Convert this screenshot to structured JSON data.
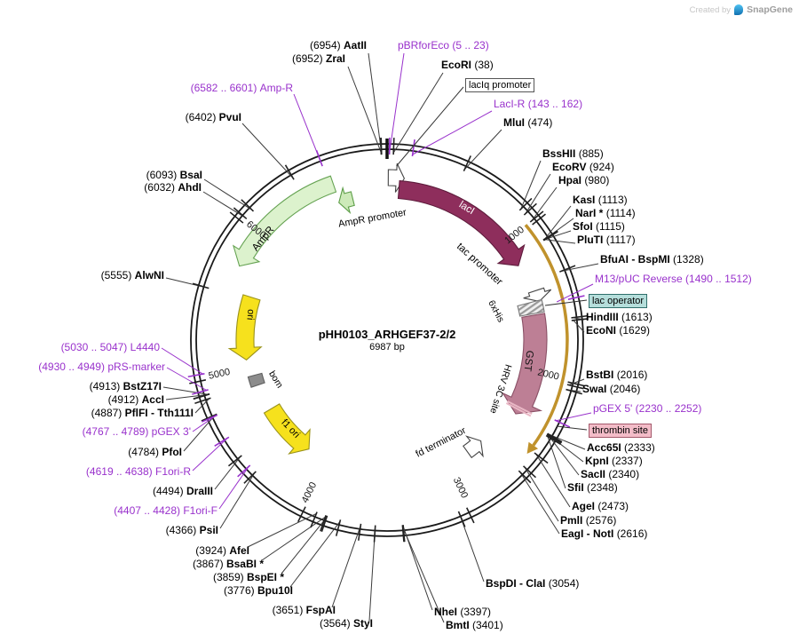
{
  "watermark": {
    "created_by": "Created by",
    "brand": "SnapGene"
  },
  "colors": {
    "backbone": "#1a1a1a",
    "primer": "#9932cc",
    "orf_gold": "#c0922c",
    "leader": "#3c3c3c"
  },
  "plasmid": {
    "name": "pHH0103_ARHGEF37-2/2",
    "size_label": "6987 bp",
    "tick_labels": [
      "1000",
      "2000",
      "3000",
      "4000",
      "5000",
      "6000"
    ],
    "features": [
      {
        "label": "AmpR promoter",
        "color": "#cdeab9"
      },
      {
        "label": "AmpR",
        "color": "#dcf2cd"
      },
      {
        "label": "lacI",
        "color": "#8e2e5c"
      },
      {
        "label": "tac promoter",
        "color": "#ffffff"
      },
      {
        "label": "6xHis",
        "color": "#d9d9d9"
      },
      {
        "label": "GST",
        "color": "#bd7f95"
      },
      {
        "label": "HRV 3C site",
        "color": "#e9b7c5"
      },
      {
        "label": "ori",
        "color": "#f6e11d"
      },
      {
        "label": "bom",
        "color": "#8c8c8c"
      },
      {
        "label": "f1 ori",
        "color": "#f6e11d"
      },
      {
        "label": "fd terminator",
        "color": "#ffffff"
      }
    ],
    "boxed_labels": [
      {
        "label": "lacIq promoter",
        "bg": "#ffffff"
      },
      {
        "label": "lac operator",
        "bg": "#b5dedb"
      },
      {
        "label": "thrombin site",
        "bg": "#f3bcc8"
      }
    ]
  },
  "sites": [
    {
      "name": "pBRforEco",
      "pos": "(5 .. 23)",
      "kind": "primer"
    },
    {
      "name": "AatII",
      "pos": "(6954)",
      "kind": "enzyme"
    },
    {
      "name": "ZraI",
      "pos": "(6952)",
      "kind": "enzyme"
    },
    {
      "name": "EcoRI",
      "pos": "(38)",
      "kind": "enzyme"
    },
    {
      "name": "LacI-R",
      "pos": "(143 .. 162)",
      "kind": "primer"
    },
    {
      "name": "MluI",
      "pos": "(474)",
      "kind": "enzyme"
    },
    {
      "name": "BssHII",
      "pos": "(885)",
      "kind": "enzyme"
    },
    {
      "name": "EcoRV",
      "pos": "(924)",
      "kind": "enzyme"
    },
    {
      "name": "HpaI",
      "pos": "(980)",
      "kind": "enzyme"
    },
    {
      "name": "KasI",
      "pos": "(1113)",
      "kind": "enzyme"
    },
    {
      "name": "NarI *",
      "pos": "(1114)",
      "kind": "enzyme"
    },
    {
      "name": "SfoI",
      "pos": "(1115)",
      "kind": "enzyme"
    },
    {
      "name": "PluTI",
      "pos": "(1117)",
      "kind": "enzyme"
    },
    {
      "name": "BfuAI - BspMI",
      "pos": "(1328)",
      "kind": "enzyme"
    },
    {
      "name": "M13/pUC Reverse",
      "pos": "(1490 .. 1512)",
      "kind": "primer"
    },
    {
      "name": "HindIII",
      "pos": "(1613)",
      "kind": "enzyme"
    },
    {
      "name": "EcoNI",
      "pos": "(1629)",
      "kind": "enzyme"
    },
    {
      "name": "BstBI",
      "pos": "(2016)",
      "kind": "enzyme"
    },
    {
      "name": "SwaI",
      "pos": "(2046)",
      "kind": "enzyme"
    },
    {
      "name": "pGEX 5'",
      "pos": "(2230 .. 2252)",
      "kind": "primer"
    },
    {
      "name": "Acc65I",
      "pos": "(2333)",
      "kind": "enzyme"
    },
    {
      "name": "KpnI",
      "pos": "(2337)",
      "kind": "enzyme"
    },
    {
      "name": "SacII",
      "pos": "(2340)",
      "kind": "enzyme"
    },
    {
      "name": "SfiI",
      "pos": "(2348)",
      "kind": "enzyme"
    },
    {
      "name": "AgeI",
      "pos": "(2473)",
      "kind": "enzyme"
    },
    {
      "name": "PmlI",
      "pos": "(2576)",
      "kind": "enzyme"
    },
    {
      "name": "EagI - NotI",
      "pos": "(2616)",
      "kind": "enzyme"
    },
    {
      "name": "BspDI - ClaI",
      "pos": "(3054)",
      "kind": "enzyme"
    },
    {
      "name": "NheI",
      "pos": "(3397)",
      "kind": "enzyme"
    },
    {
      "name": "BmtI",
      "pos": "(3401)",
      "kind": "enzyme"
    },
    {
      "name": "StyI",
      "pos": "(3564)",
      "kind": "enzyme"
    },
    {
      "name": "FspAI",
      "pos": "(3651)",
      "kind": "enzyme"
    },
    {
      "name": "Bpu10I",
      "pos": "(3776)",
      "kind": "enzyme"
    },
    {
      "name": "BspEI *",
      "pos": "(3859)",
      "kind": "enzyme"
    },
    {
      "name": "BsaBI *",
      "pos": "(3867)",
      "kind": "enzyme"
    },
    {
      "name": "AfeI",
      "pos": "(3924)",
      "kind": "enzyme"
    },
    {
      "name": "PsiI",
      "pos": "(4366)",
      "kind": "enzyme"
    },
    {
      "name": "F1ori-F",
      "pos": "(4407 .. 4428)",
      "kind": "primer"
    },
    {
      "name": "DraIII",
      "pos": "(4494)",
      "kind": "enzyme"
    },
    {
      "name": "F1ori-R",
      "pos": "(4619 .. 4638)",
      "kind": "primer"
    },
    {
      "name": "PfoI",
      "pos": "(4784)",
      "kind": "enzyme"
    },
    {
      "name": "pGEX 3'",
      "pos": "(4767 .. 4789)",
      "kind": "primer"
    },
    {
      "name": "PflFI - Tth111I",
      "pos": "(4887)",
      "kind": "enzyme"
    },
    {
      "name": "AccI",
      "pos": "(4912)",
      "kind": "enzyme"
    },
    {
      "name": "BstZ17I",
      "pos": "(4913)",
      "kind": "enzyme"
    },
    {
      "name": "pRS-marker",
      "pos": "(4930 .. 4949)",
      "kind": "primer"
    },
    {
      "name": "L4440",
      "pos": "(5030 .. 5047)",
      "kind": "primer"
    },
    {
      "name": "AlwNI",
      "pos": "(5555)",
      "kind": "enzyme"
    },
    {
      "name": "AhdI",
      "pos": "(6032)",
      "kind": "enzyme"
    },
    {
      "name": "BsaI",
      "pos": "(6093)",
      "kind": "enzyme"
    },
    {
      "name": "PvuI",
      "pos": "(6402)",
      "kind": "enzyme"
    },
    {
      "name": "Amp-R",
      "pos": "(6582 .. 6601)",
      "kind": "primer"
    }
  ]
}
